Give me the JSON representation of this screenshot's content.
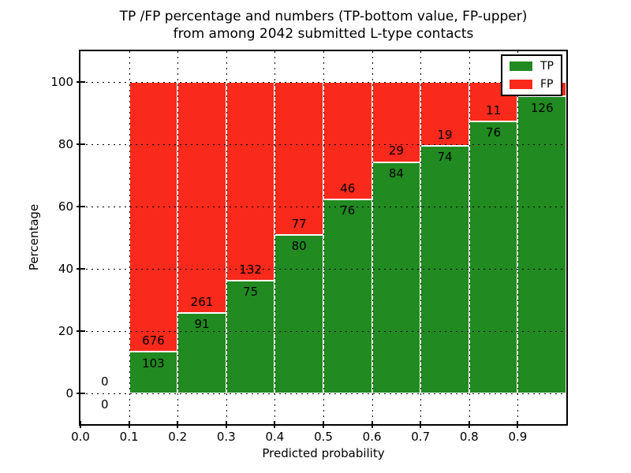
{
  "figure": {
    "title_line1": "TP /FP percentage and numbers (TP-bottom value, FP-upper)",
    "title_line2": "from among 2042 submitted L-type contacts"
  },
  "colors": {
    "tp": "#218a21",
    "fp": "#f92a1b",
    "grid": "#000000",
    "text": "#000000",
    "background": "#ffffff"
  },
  "chart_data": {
    "type": "bar",
    "subtype": "stacked-percentage-histogram",
    "title": "TP /FP percentage and numbers (TP-bottom value, FP-upper)\nfrom among 2042 submitted L-type contacts",
    "xlabel": "Predicted probability",
    "ylabel": "Percentage",
    "total_submitted_contacts": 2042,
    "xlim": [
      0.0,
      1.0
    ],
    "ylim": [
      -10,
      110
    ],
    "grid": "dotted",
    "x_ticks": [
      {
        "value": 0.0,
        "label": "0.0"
      },
      {
        "value": 0.1,
        "label": "0.1"
      },
      {
        "value": 0.2,
        "label": "0.2"
      },
      {
        "value": 0.3,
        "label": "0.3"
      },
      {
        "value": 0.4,
        "label": "0.4"
      },
      {
        "value": 0.5,
        "label": "0.5"
      },
      {
        "value": 0.6,
        "label": "0.6"
      },
      {
        "value": 0.7,
        "label": "0.7"
      },
      {
        "value": 0.8,
        "label": "0.8"
      },
      {
        "value": 0.9,
        "label": "0.9"
      }
    ],
    "y_ticks": [
      {
        "value": 0,
        "label": "0"
      },
      {
        "value": 20,
        "label": "20"
      },
      {
        "value": 40,
        "label": "40"
      },
      {
        "value": 60,
        "label": "60"
      },
      {
        "value": 80,
        "label": "80"
      },
      {
        "value": 100,
        "label": "100"
      }
    ],
    "legend": {
      "position": "upper-right",
      "entries": [
        {
          "label": "TP",
          "color_key": "tp"
        },
        {
          "label": "FP",
          "color_key": "fp"
        }
      ]
    },
    "bins": [
      {
        "x0": 0.0,
        "x1": 0.1,
        "tp": 0,
        "fp": 0,
        "tp_pct": 0,
        "tp_label": "0",
        "fp_label": "0",
        "has_bar": false
      },
      {
        "x0": 0.1,
        "x1": 0.2,
        "tp": 103,
        "fp": 676,
        "tp_pct": 13.22,
        "tp_label": "103",
        "fp_label": "676",
        "has_bar": true
      },
      {
        "x0": 0.2,
        "x1": 0.3,
        "tp": 91,
        "fp": 261,
        "tp_pct": 25.85,
        "tp_label": "91",
        "fp_label": "261",
        "has_bar": true
      },
      {
        "x0": 0.3,
        "x1": 0.4,
        "tp": 75,
        "fp": 132,
        "tp_pct": 36.23,
        "tp_label": "75",
        "fp_label": "132",
        "has_bar": true
      },
      {
        "x0": 0.4,
        "x1": 0.5,
        "tp": 80,
        "fp": 77,
        "tp_pct": 50.96,
        "tp_label": "80",
        "fp_label": "77",
        "has_bar": true
      },
      {
        "x0": 0.5,
        "x1": 0.6,
        "tp": 76,
        "fp": 46,
        "tp_pct": 62.3,
        "tp_label": "76",
        "fp_label": "46",
        "has_bar": true
      },
      {
        "x0": 0.6,
        "x1": 0.7,
        "tp": 84,
        "fp": 29,
        "tp_pct": 74.34,
        "tp_label": "84",
        "fp_label": "29",
        "has_bar": true
      },
      {
        "x0": 0.7,
        "x1": 0.8,
        "tp": 74,
        "fp": 19,
        "tp_pct": 79.57,
        "tp_label": "74",
        "fp_label": "19",
        "has_bar": true
      },
      {
        "x0": 0.8,
        "x1": 0.9,
        "tp": 76,
        "fp": 11,
        "tp_pct": 87.36,
        "tp_label": "76",
        "fp_label": "11",
        "has_bar": true
      },
      {
        "x0": 0.9,
        "x1": 1.0,
        "tp": 126,
        "fp": null,
        "tp_pct": 95.45,
        "tp_label": "126",
        "fp_label": null,
        "has_bar": true
      }
    ]
  }
}
